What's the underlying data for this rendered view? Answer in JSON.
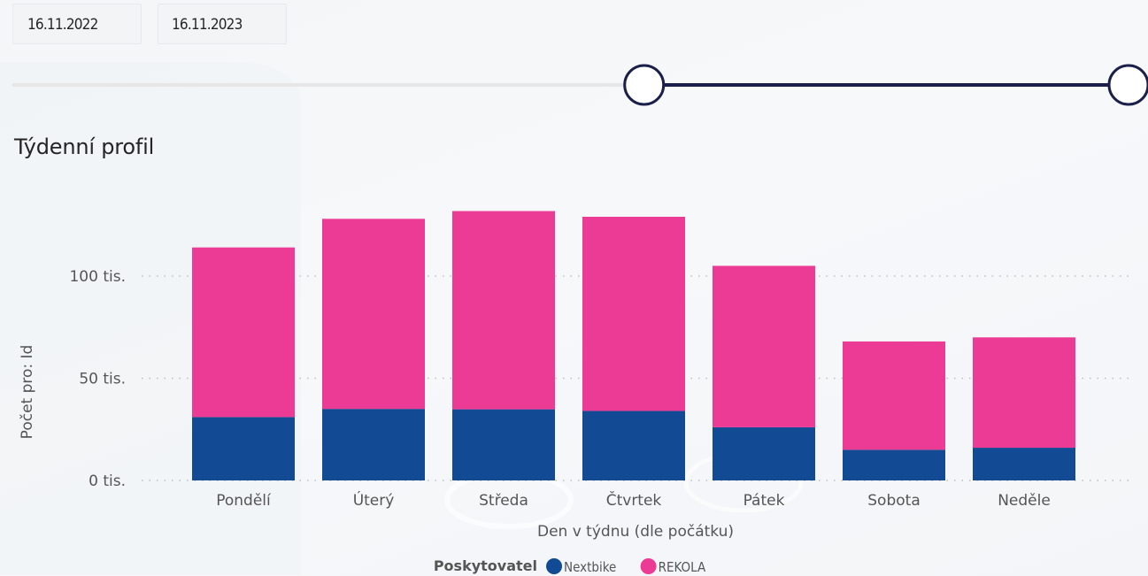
{
  "date_range": {
    "start": "16.11.2022",
    "end": "16.11.2023"
  },
  "slider": {
    "track_color": "#e6e6e6",
    "range_color": "#1b1f4a",
    "start_fraction": 0.566,
    "end_fraction": 1.0
  },
  "chart_title": "Týdenní profil",
  "chart_data": {
    "type": "bar",
    "stacked": true,
    "title": "Týdenní profil",
    "xlabel": "Den v týdnu (dle počátku)",
    "ylabel": "Počet pro: Id",
    "categories": [
      "Pondělí",
      "Úterý",
      "Středa",
      "Čtvrtek",
      "Pátek",
      "Sobota",
      "Neděle"
    ],
    "series": [
      {
        "name": "Nextbike",
        "color": "#124a93",
        "values": [
          31000,
          35000,
          34800,
          34000,
          26000,
          15000,
          16000
        ]
      },
      {
        "name": "REKOLA",
        "color": "#ec3b95",
        "values": [
          83000,
          93000,
          97000,
          95000,
          79000,
          53000,
          54000
        ]
      }
    ],
    "ylim": [
      0,
      130000
    ],
    "yticks": [
      {
        "value": 0,
        "label": "0 tis."
      },
      {
        "value": 50000,
        "label": "50 tis."
      },
      {
        "value": 100000,
        "label": "100 tis."
      }
    ],
    "grid": true,
    "legend": {
      "title": "Poskytovatel",
      "placement": "bottom"
    }
  }
}
